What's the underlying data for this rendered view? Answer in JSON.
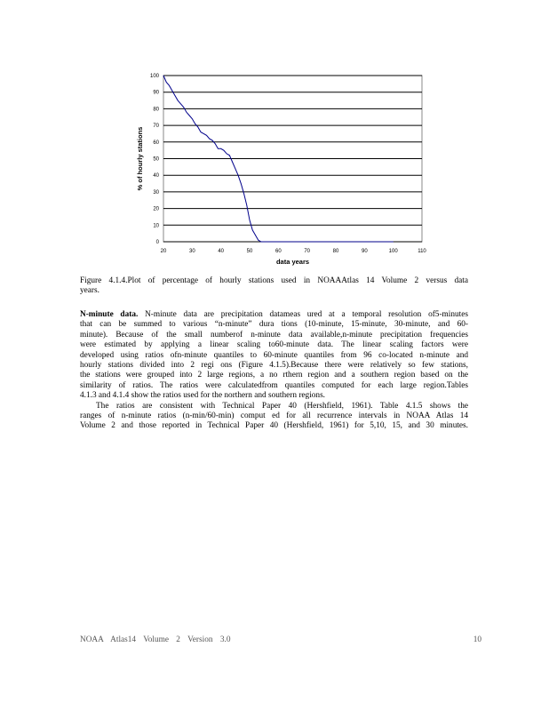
{
  "chart_data": {
    "type": "line",
    "xlabel": "data  years",
    "ylabel": "% of hourly  stations",
    "xlim": [
      20,
      110
    ],
    "ylim": [
      0,
      100
    ],
    "xticks": [
      20,
      30,
      40,
      50,
      60,
      70,
      80,
      90,
      100,
      110
    ],
    "yticks": [
      0,
      10,
      20,
      30,
      40,
      50,
      60,
      70,
      80,
      90,
      100
    ],
    "grid": "horizontal",
    "line_color": "#00008b",
    "x": [
      20,
      21,
      22,
      23,
      24,
      25,
      26,
      27,
      28,
      29,
      30,
      31,
      32,
      33,
      34,
      35,
      36,
      37,
      38,
      39,
      40,
      41,
      42,
      43,
      44,
      45,
      46,
      47,
      48,
      49,
      50,
      51,
      52,
      53,
      54,
      60,
      100
    ],
    "y": [
      100,
      96,
      94,
      91,
      88,
      85,
      83,
      81,
      78,
      76,
      74,
      71,
      69,
      66,
      65,
      64,
      62,
      61,
      59,
      56,
      56,
      55,
      53,
      52,
      48,
      44,
      40,
      35,
      29,
      22,
      13,
      7,
      4,
      1,
      0,
      0,
      0
    ]
  },
  "caption": [
    "Figure  4.1.4.Plot  of percentage  of hourly stations used in NOAAAtlas  14 Volume  2 versus data",
    "years."
  ],
  "para1_head": "N-minute   data.",
  "para1": [
    "N-minute  data are precipitation  datameas ured at a temporal resolution  of5-minutes",
    "that can be summed  to various  “n-minute”  dura tions (10-minute,  15-minute,  30-minute,  and 60-",
    "minute).  Because of the small numberof  n-minute  data available,n-minute  precipitation  frequencies",
    "were estimated  by applying  a linear scaling to60-minute  data. The linear scaling factors were",
    "developed  using ratios ofn-minute  quantiles  to 60-minute  quantiles  from 96 co-located  n-minute  and",
    "hourly stations divided into 2 regi ons (Figure  4.1.5).Because  there were relatively  so few stations,",
    "the stations  were grouped into 2 large regions,  a no rthern region and a southern  region based on the",
    "similarity  of ratios. The ratios were calculatedfrom  quantiles  computed  for each large region.Tables",
    "4.1.3  and 4.1.4  show the ratios used for the northern  and southern  regions."
  ],
  "para2": [
    "The ratios are consistent  with Technical  Paper 40 (Hershfield,  1961).  Table 4.1.5 shows the",
    "ranges of n-minute  ratios (n-min/60-min)  comput ed for all recurrence  intervals in NOAA Atlas 14",
    "Volume  2 and those reported  in Technical  Paper 40 (Hershfield,  1961) for 5,10, 15, and 30 minutes."
  ],
  "footer": {
    "left": "NOAA  Atlas14  Volume  2 Version  3.0",
    "page": "10"
  }
}
